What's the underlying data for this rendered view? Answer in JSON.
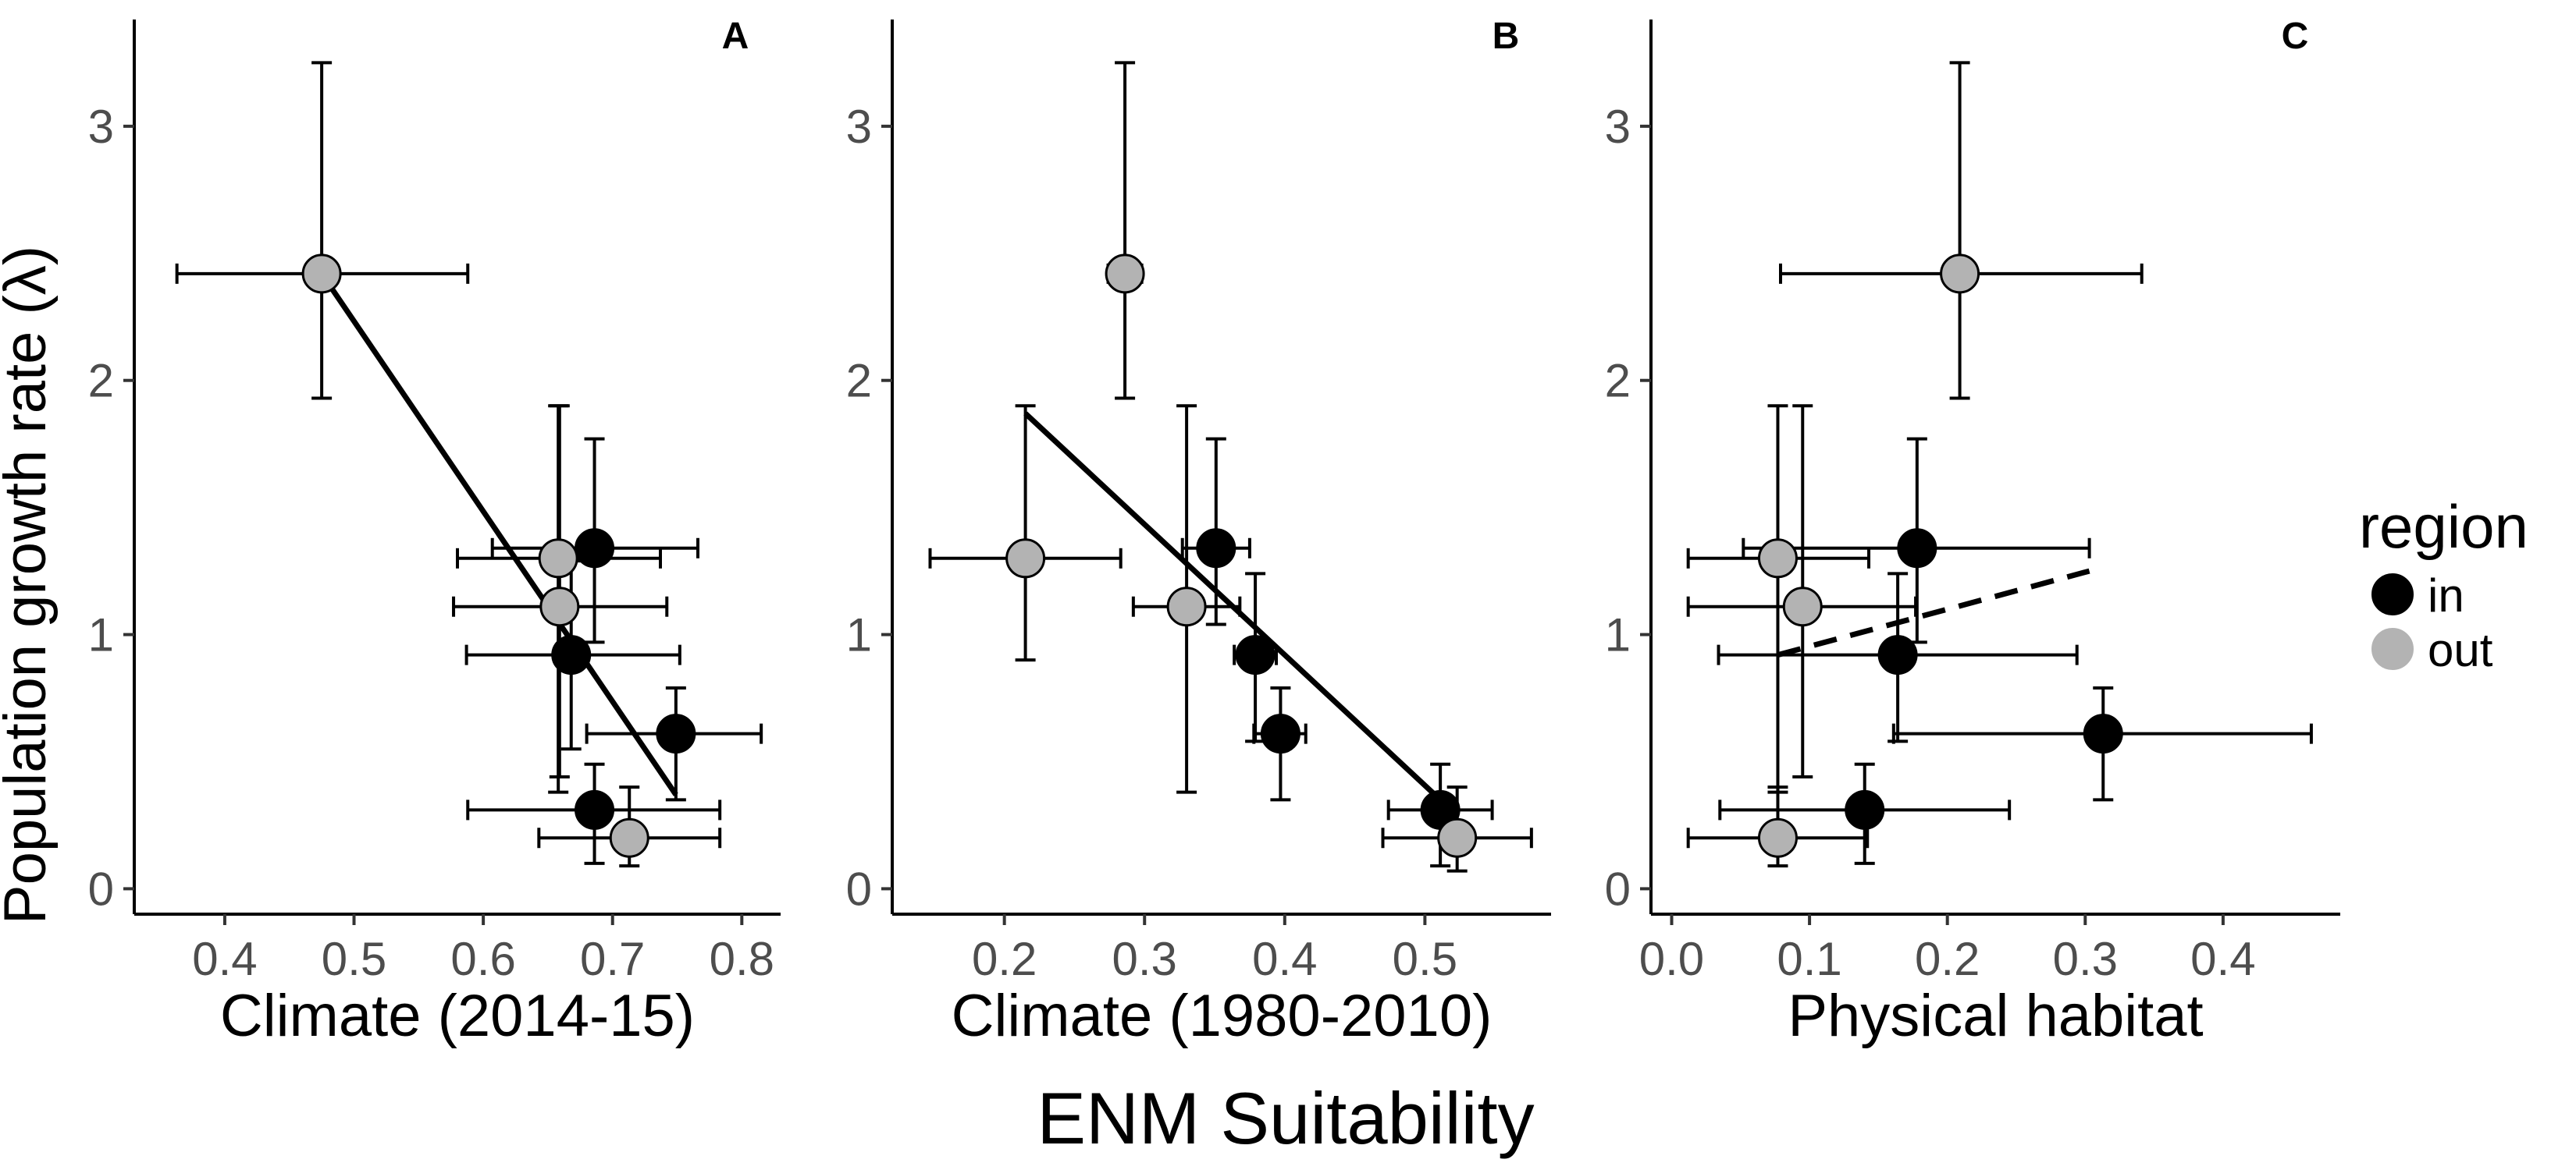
{
  "figure": {
    "ylabel": "Population growth rate (λ)",
    "common_xlabel": "ENM Suitability"
  },
  "legend": {
    "title": "region",
    "items": [
      {
        "label": "in",
        "color": "#000000"
      },
      {
        "label": "out",
        "color": "#b3b3b3"
      }
    ]
  },
  "colors": {
    "in": "#000000",
    "out": "#b3b3b3",
    "line": "#000000",
    "errorbar": "#000000"
  },
  "chart_data": [
    {
      "type": "scatter",
      "tag": "A",
      "xlabel": "Climate (2014-15)",
      "xlim": [
        0.33,
        0.83
      ],
      "ylim": [
        -0.1,
        3.42
      ],
      "xticks": [
        0.4,
        0.5,
        0.6,
        0.7,
        0.8
      ],
      "xtick_labels": [
        "0.4",
        "0.5",
        "0.6",
        "0.7",
        "0.8"
      ],
      "yticks": [
        0,
        1,
        2,
        3
      ],
      "ytick_labels": [
        "0",
        "1",
        "2",
        "3"
      ],
      "grid": false,
      "points": [
        {
          "region": "out",
          "x": 0.475,
          "y": 2.42,
          "xmin": 0.363,
          "xmax": 0.588,
          "ymin": 1.93,
          "ymax": 3.25
        },
        {
          "region": "out",
          "x": 0.658,
          "y": 1.3,
          "xmin": 0.58,
          "xmax": 0.737,
          "ymin": 0.38,
          "ymax": 1.9
        },
        {
          "region": "in",
          "x": 0.686,
          "y": 1.34,
          "xmin": 0.607,
          "xmax": 0.766,
          "ymin": 0.97,
          "ymax": 1.77
        },
        {
          "region": "out",
          "x": 0.659,
          "y": 1.11,
          "xmin": 0.577,
          "xmax": 0.742,
          "ymin": 0.44,
          "ymax": 1.9
        },
        {
          "region": "in",
          "x": 0.668,
          "y": 0.92,
          "xmin": 0.587,
          "xmax": 0.752,
          "ymin": 0.55,
          "ymax": 1.29
        },
        {
          "region": "in",
          "x": 0.749,
          "y": 0.61,
          "xmin": 0.68,
          "xmax": 0.815,
          "ymin": 0.35,
          "ymax": 0.79
        },
        {
          "region": "in",
          "x": 0.686,
          "y": 0.31,
          "xmin": 0.588,
          "xmax": 0.783,
          "ymin": 0.1,
          "ymax": 0.49
        },
        {
          "region": "out",
          "x": 0.713,
          "y": 0.2,
          "xmin": 0.643,
          "xmax": 0.783,
          "ymin": 0.09,
          "ymax": 0.4
        }
      ],
      "fit_line": {
        "style": "solid",
        "x": [
          0.475,
          0.749
        ],
        "y": [
          2.42,
          0.37
        ]
      }
    },
    {
      "type": "scatter",
      "tag": "B",
      "xlabel": "Climate (1980-2010)",
      "xlim": [
        0.12,
        0.59
      ],
      "ylim": [
        -0.1,
        3.42
      ],
      "xticks": [
        0.2,
        0.3,
        0.4,
        0.5
      ],
      "xtick_labels": [
        "0.2",
        "0.3",
        "0.4",
        "0.5"
      ],
      "yticks": [
        0,
        1,
        2,
        3
      ],
      "ytick_labels": [
        "0",
        "1",
        "2",
        "3"
      ],
      "grid": false,
      "points": [
        {
          "region": "out",
          "x": 0.286,
          "y": 2.42,
          "xmin": 0.274,
          "xmax": 0.298,
          "ymin": 1.93,
          "ymax": 3.25
        },
        {
          "region": "out",
          "x": 0.215,
          "y": 1.3,
          "xmin": 0.147,
          "xmax": 0.283,
          "ymin": 0.9,
          "ymax": 1.9
        },
        {
          "region": "in",
          "x": 0.351,
          "y": 1.34,
          "xmin": 0.327,
          "xmax": 0.375,
          "ymin": 1.04,
          "ymax": 1.77
        },
        {
          "region": "out",
          "x": 0.33,
          "y": 1.11,
          "xmin": 0.292,
          "xmax": 0.368,
          "ymin": 0.38,
          "ymax": 1.9
        },
        {
          "region": "in",
          "x": 0.379,
          "y": 0.92,
          "xmin": 0.364,
          "xmax": 0.394,
          "ymin": 0.58,
          "ymax": 1.24
        },
        {
          "region": "in",
          "x": 0.397,
          "y": 0.61,
          "xmin": 0.378,
          "xmax": 0.415,
          "ymin": 0.35,
          "ymax": 0.79
        },
        {
          "region": "in",
          "x": 0.511,
          "y": 0.31,
          "xmin": 0.474,
          "xmax": 0.548,
          "ymin": 0.09,
          "ymax": 0.49
        },
        {
          "region": "out",
          "x": 0.523,
          "y": 0.2,
          "xmin": 0.47,
          "xmax": 0.576,
          "ymin": 0.07,
          "ymax": 0.4
        }
      ],
      "fit_line": {
        "style": "solid",
        "x": [
          0.215,
          0.511
        ],
        "y": [
          1.87,
          0.35
        ]
      }
    },
    {
      "type": "scatter",
      "tag": "C",
      "xlabel": "Physical habitat",
      "xlim": [
        -0.015,
        0.485
      ],
      "ylim": [
        -0.1,
        3.42
      ],
      "xticks": [
        0.0,
        0.1,
        0.2,
        0.3,
        0.4
      ],
      "xtick_labels": [
        "0.0",
        "0.1",
        "0.2",
        "0.3",
        "0.4"
      ],
      "yticks": [
        0,
        1,
        2,
        3
      ],
      "ytick_labels": [
        "0",
        "1",
        "2",
        "3"
      ],
      "grid": false,
      "points": [
        {
          "region": "out",
          "x": 0.209,
          "y": 2.42,
          "xmin": 0.079,
          "xmax": 0.341,
          "ymin": 1.93,
          "ymax": 3.25
        },
        {
          "region": "out",
          "x": 0.077,
          "y": 1.3,
          "xmin": 0.012,
          "xmax": 0.143,
          "ymin": 0.38,
          "ymax": 1.9
        },
        {
          "region": "in",
          "x": 0.178,
          "y": 1.34,
          "xmin": 0.052,
          "xmax": 0.303,
          "ymin": 0.97,
          "ymax": 1.77
        },
        {
          "region": "out",
          "x": 0.095,
          "y": 1.11,
          "xmin": 0.012,
          "xmax": 0.177,
          "ymin": 0.44,
          "ymax": 1.9
        },
        {
          "region": "in",
          "x": 0.164,
          "y": 0.92,
          "xmin": 0.034,
          "xmax": 0.294,
          "ymin": 0.58,
          "ymax": 1.24
        },
        {
          "region": "in",
          "x": 0.313,
          "y": 0.61,
          "xmin": 0.161,
          "xmax": 0.464,
          "ymin": 0.35,
          "ymax": 0.79
        },
        {
          "region": "in",
          "x": 0.14,
          "y": 0.31,
          "xmin": 0.035,
          "xmax": 0.245,
          "ymin": 0.1,
          "ymax": 0.49
        },
        {
          "region": "out",
          "x": 0.077,
          "y": 0.2,
          "xmin": 0.012,
          "xmax": 0.142,
          "ymin": 0.09,
          "ymax": 0.4
        }
      ],
      "fit_line": {
        "style": "dashed",
        "x": [
          0.077,
          0.303
        ],
        "y": [
          0.92,
          1.25
        ]
      }
    }
  ]
}
